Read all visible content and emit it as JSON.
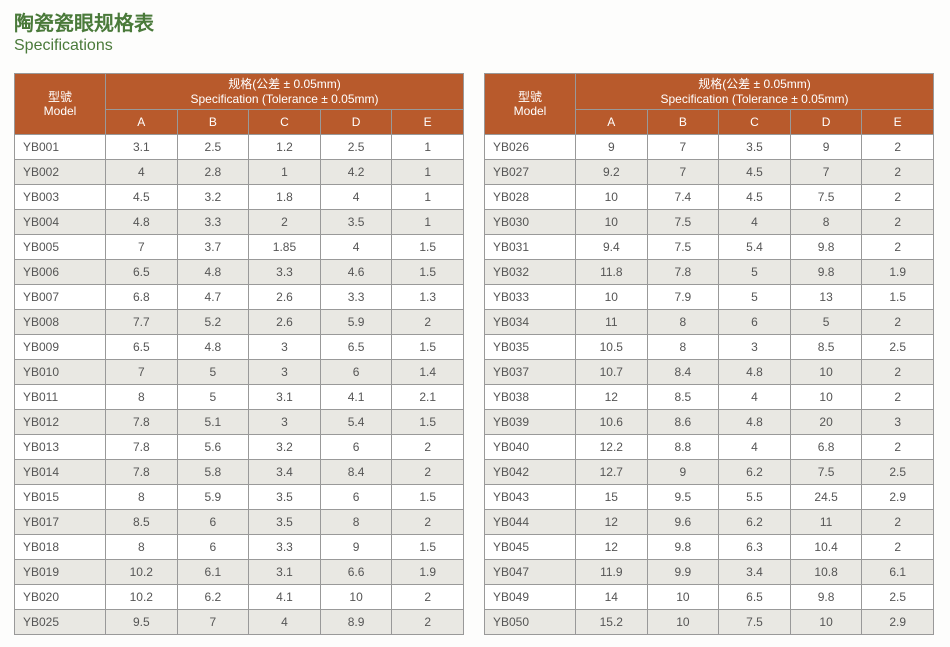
{
  "title_cn": "陶瓷瓷眼规格表",
  "title_en": "Specifications",
  "header": {
    "model_cn": "型號",
    "model_en": "Model",
    "spec_cn": "规格(公差 ± 0.05mm)",
    "spec_en": "Specification (Tolerance  ± 0.05mm)",
    "cols": [
      "A",
      "B",
      "C",
      "D",
      "E"
    ]
  },
  "table_left": [
    [
      "YB001",
      "3.1",
      "2.5",
      "1.2",
      "2.5",
      "1"
    ],
    [
      "YB002",
      "4",
      "2.8",
      "1",
      "4.2",
      "1"
    ],
    [
      "YB003",
      "4.5",
      "3.2",
      "1.8",
      "4",
      "1"
    ],
    [
      "YB004",
      "4.8",
      "3.3",
      "2",
      "3.5",
      "1"
    ],
    [
      "YB005",
      "7",
      "3.7",
      "1.85",
      "4",
      "1.5"
    ],
    [
      "YB006",
      "6.5",
      "4.8",
      "3.3",
      "4.6",
      "1.5"
    ],
    [
      "YB007",
      "6.8",
      "4.7",
      "2.6",
      "3.3",
      "1.3"
    ],
    [
      "YB008",
      "7.7",
      "5.2",
      "2.6",
      "5.9",
      "2"
    ],
    [
      "YB009",
      "6.5",
      "4.8",
      "3",
      "6.5",
      "1.5"
    ],
    [
      "YB010",
      "7",
      "5",
      "3",
      "6",
      "1.4"
    ],
    [
      "YB011",
      "8",
      "5",
      "3.1",
      "4.1",
      "2.1"
    ],
    [
      "YB012",
      "7.8",
      "5.1",
      "3",
      "5.4",
      "1.5"
    ],
    [
      "YB013",
      "7.8",
      "5.6",
      "3.2",
      "6",
      "2"
    ],
    [
      "YB014",
      "7.8",
      "5.8",
      "3.4",
      "8.4",
      "2"
    ],
    [
      "YB015",
      "8",
      "5.9",
      "3.5",
      "6",
      "1.5"
    ],
    [
      "YB017",
      "8.5",
      "6",
      "3.5",
      "8",
      "2"
    ],
    [
      "YB018",
      "8",
      "6",
      "3.3",
      "9",
      "1.5"
    ],
    [
      "YB019",
      "10.2",
      "6.1",
      "3.1",
      "6.6",
      "1.9"
    ],
    [
      "YB020",
      "10.2",
      "6.2",
      "4.1",
      "10",
      "2"
    ],
    [
      "YB025",
      "9.5",
      "7",
      "4",
      "8.9",
      "2"
    ]
  ],
  "table_right": [
    [
      "YB026",
      "9",
      "7",
      "3.5",
      "9",
      "2"
    ],
    [
      "YB027",
      "9.2",
      "7",
      "4.5",
      "7",
      "2"
    ],
    [
      "YB028",
      "10",
      "7.4",
      "4.5",
      "7.5",
      "2"
    ],
    [
      "YB030",
      "10",
      "7.5",
      "4",
      "8",
      "2"
    ],
    [
      "YB031",
      "9.4",
      "7.5",
      "5.4",
      "9.8",
      "2"
    ],
    [
      "YB032",
      "11.8",
      "7.8",
      "5",
      "9.8",
      "1.9"
    ],
    [
      "YB033",
      "10",
      "7.9",
      "5",
      "13",
      "1.5"
    ],
    [
      "YB034",
      "11",
      "8",
      "6",
      "5",
      "2"
    ],
    [
      "YB035",
      "10.5",
      "8",
      "3",
      "8.5",
      "2.5"
    ],
    [
      "YB037",
      "10.7",
      "8.4",
      "4.8",
      "10",
      "2"
    ],
    [
      "YB038",
      "12",
      "8.5",
      "4",
      "10",
      "2"
    ],
    [
      "YB039",
      "10.6",
      "8.6",
      "4.8",
      "20",
      "3"
    ],
    [
      "YB040",
      "12.2",
      "8.8",
      "4",
      "6.8",
      "2"
    ],
    [
      "YB042",
      "12.7",
      "9",
      "6.2",
      "7.5",
      "2.5"
    ],
    [
      "YB043",
      "15",
      "9.5",
      "5.5",
      "24.5",
      "2.9"
    ],
    [
      "YB044",
      "12",
      "9.6",
      "6.2",
      "11",
      "2"
    ],
    [
      "YB045",
      "12",
      "9.8",
      "6.3",
      "10.4",
      "2"
    ],
    [
      "YB047",
      "11.9",
      "9.9",
      "3.4",
      "10.8",
      "6.1"
    ],
    [
      "YB049",
      "14",
      "10",
      "6.5",
      "9.8",
      "2.5"
    ],
    [
      "YB050",
      "15.2",
      "10",
      "7.5",
      "10",
      "2.9"
    ]
  ],
  "colors": {
    "header_bg": "#b85a2c",
    "header_text": "#ffffff",
    "row_odd_bg": "#ffffff",
    "row_even_bg": "#e9e8e3",
    "border": "#999999",
    "title": "#4a7a3a",
    "cell_text": "#555555"
  }
}
